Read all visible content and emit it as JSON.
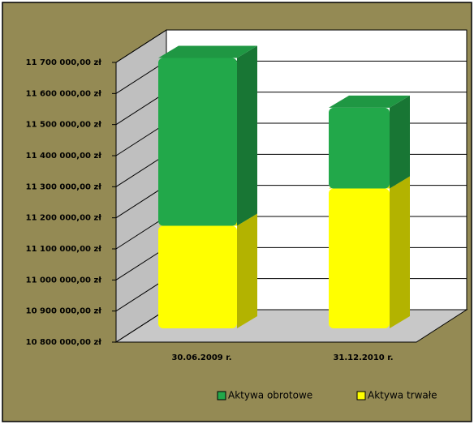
{
  "chart_data": {
    "type": "bar3d_stacked",
    "categories": [
      "30.06.2009 r.",
      "31.12.2010 r."
    ],
    "series": [
      {
        "name": "Aktywa trwałe",
        "color": "#ffff00",
        "values": [
          11130000,
          11250000
        ]
      },
      {
        "name": "Aktywa obrotowe",
        "color": "#22a84a",
        "values": [
          540000,
          260000
        ]
      }
    ],
    "ylim": [
      10800000,
      11700000
    ],
    "yticks": [
      {
        "value": 10800000,
        "label": "10 800 000,00 zł"
      },
      {
        "value": 10900000,
        "label": "10 900 000,00 zł"
      },
      {
        "value": 11000000,
        "label": "11 000 000,00 zł"
      },
      {
        "value": 11100000,
        "label": "11 100 000,00 zł"
      },
      {
        "value": 11200000,
        "label": "11 200 000,00 zł"
      },
      {
        "value": 11300000,
        "label": "11 300 000,00 zł"
      },
      {
        "value": 11400000,
        "label": "11 400 000,00 zł"
      },
      {
        "value": 11500000,
        "label": "11 500 000,00 zł"
      },
      {
        "value": 11600000,
        "label": "11 600 000,00 zł"
      },
      {
        "value": 11700000,
        "label": "11 700 000,00 zł"
      }
    ],
    "grid": true
  }
}
